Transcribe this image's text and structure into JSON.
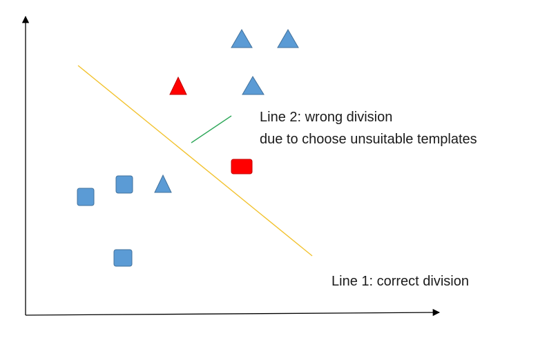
{
  "diagram": {
    "annotations": {
      "line2_line1": "Line 2: wrong division",
      "line2_line2": "due to choose unsuitable templates",
      "line1": "Line 1: correct division"
    },
    "legend_lines": [
      {
        "name": "line1",
        "color": "#F2C22E",
        "meaning": "correct division"
      },
      {
        "name": "line2",
        "color": "#2FA85A",
        "meaning": "wrong division"
      }
    ],
    "shapes": [
      {
        "kind": "triangle",
        "color": "#5B9BD5"
      },
      {
        "kind": "triangle",
        "color": "#5B9BD5"
      },
      {
        "kind": "triangle",
        "color": "#FF0000"
      },
      {
        "kind": "triangle",
        "color": "#5B9BD5"
      },
      {
        "kind": "triangle",
        "color": "#5B9BD5"
      },
      {
        "kind": "square",
        "color": "#5B9BD5"
      },
      {
        "kind": "square",
        "color": "#5B9BD5"
      },
      {
        "kind": "square",
        "color": "#5B9BD5"
      },
      {
        "kind": "square",
        "color": "#FF0000"
      }
    ],
    "colors": {
      "axis": "#000000",
      "blue_fill": "#5B9BD5",
      "blue_stroke": "#41719C",
      "red_fill": "#FF0000",
      "red_stroke": "#C00000",
      "line1": "#F2C22E",
      "line2": "#2FA85A"
    }
  }
}
